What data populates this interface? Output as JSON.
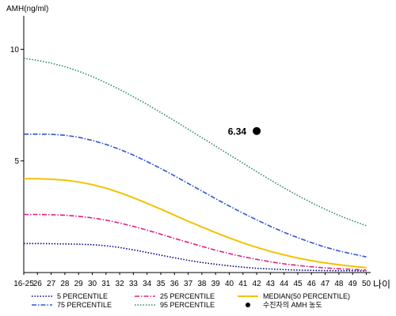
{
  "chart_data": {
    "type": "line",
    "ylabel": "AMH(ng/ml)",
    "xunit": "나이",
    "x_ticks": [
      "16-25",
      "26",
      "27",
      "28",
      "29",
      "30",
      "31",
      "32",
      "33",
      "34",
      "35",
      "36",
      "37",
      "38",
      "39",
      "40",
      "41",
      "42",
      "43",
      "44",
      "45",
      "46",
      "47",
      "48",
      "49",
      "50"
    ],
    "y_ticks": [
      5,
      10
    ],
    "ylim": [
      0,
      11.5
    ],
    "grid": false,
    "legend_position": "bottom",
    "series": [
      {
        "name": "5 PERCENTILE",
        "color": "#000080",
        "dash": "dot",
        "values": [
          1.3,
          1.3,
          1.29,
          1.28,
          1.27,
          1.25,
          1.2,
          1.12,
          1.02,
          0.9,
          0.78,
          0.66,
          0.55,
          0.45,
          0.37,
          0.3,
          0.24,
          0.19,
          0.16,
          0.13,
          0.11,
          0.1,
          0.09,
          0.08,
          0.08,
          0.07
        ]
      },
      {
        "name": "25 PERCENTILE",
        "color": "#e0207f",
        "dash": "dashdot",
        "values": [
          2.6,
          2.6,
          2.59,
          2.57,
          2.52,
          2.45,
          2.35,
          2.22,
          2.07,
          1.9,
          1.72,
          1.53,
          1.35,
          1.17,
          1.0,
          0.85,
          0.71,
          0.59,
          0.48,
          0.39,
          0.32,
          0.26,
          0.21,
          0.17,
          0.14,
          0.11
        ]
      },
      {
        "name": "MEDIAN(50 PERCENTILE)",
        "color": "#f2c200",
        "dash": "solid",
        "values": [
          4.2,
          4.2,
          4.18,
          4.14,
          4.06,
          3.94,
          3.78,
          3.58,
          3.35,
          3.1,
          2.84,
          2.57,
          2.3,
          2.04,
          1.79,
          1.55,
          1.33,
          1.13,
          0.95,
          0.79,
          0.65,
          0.53,
          0.43,
          0.35,
          0.28,
          0.22
        ]
      },
      {
        "name": "75 PERCENTILE",
        "color": "#3355cc",
        "dash": "dashdot",
        "values": [
          6.2,
          6.2,
          6.19,
          6.15,
          6.06,
          5.92,
          5.74,
          5.52,
          5.26,
          4.97,
          4.66,
          4.33,
          3.99,
          3.65,
          3.31,
          2.98,
          2.66,
          2.36,
          2.07,
          1.8,
          1.56,
          1.34,
          1.14,
          0.97,
          0.83,
          0.7
        ]
      },
      {
        "name": "95 PERCENTILE",
        "color": "#2e8b57",
        "dash": "dot",
        "values": [
          9.6,
          9.5,
          9.38,
          9.22,
          9.02,
          8.78,
          8.5,
          8.2,
          7.87,
          7.53,
          7.17,
          6.8,
          6.42,
          6.04,
          5.66,
          5.28,
          4.9,
          4.52,
          4.15,
          3.79,
          3.45,
          3.13,
          2.83,
          2.56,
          2.32,
          2.1
        ]
      }
    ],
    "patient_point": {
      "name": "수진자의 AMH 농도",
      "x": "42",
      "y": 6.34,
      "label": "6.34"
    }
  }
}
